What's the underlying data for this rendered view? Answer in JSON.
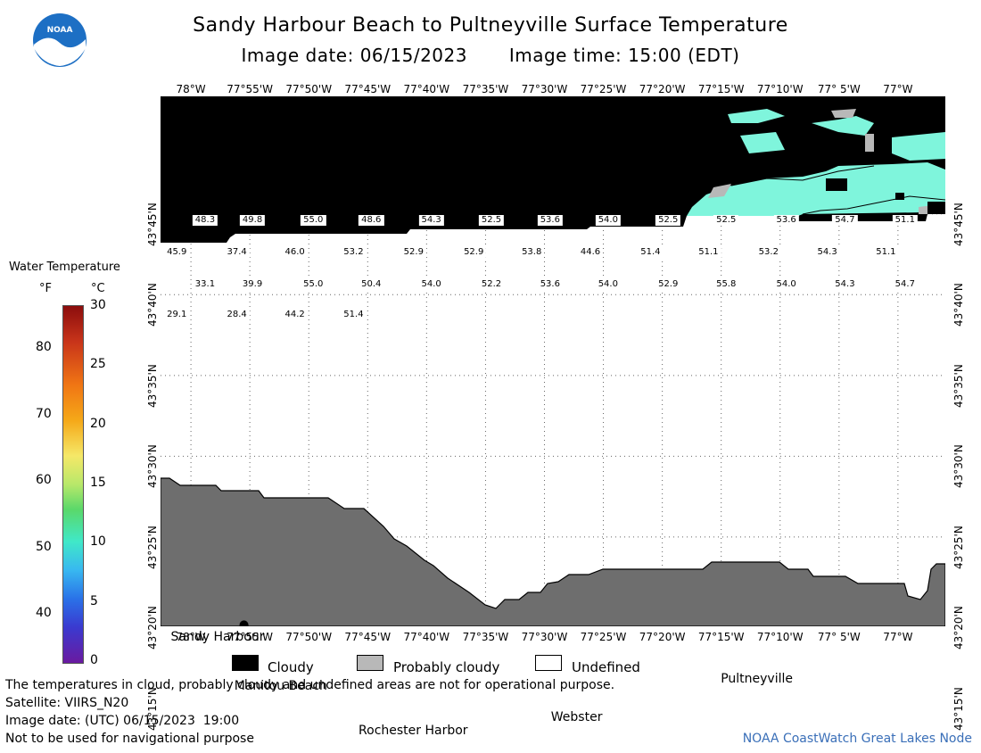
{
  "header": {
    "title": "Sandy Harbour Beach to Pultneyville Surface Temperature",
    "image_date": "Image date: 06/15/2023",
    "image_time": "Image time: 15:00 (EDT)"
  },
  "logo": {
    "text": "NOAA",
    "color": "#1d6fc4"
  },
  "map": {
    "lon_labels_top": [
      "78°W",
      "77°55'W",
      "77°50'W",
      "77°45'W",
      "77°40'W",
      "77°35'W",
      "77°30'W",
      "77°25'W",
      "77°20'W",
      "77°15'W",
      "77°10'W",
      "77° 5'W",
      "77°W"
    ],
    "lon_labels_bottom": [
      "78°W",
      "77°55'W",
      "77°50'W",
      "77°45'W",
      "77°40'W",
      "77°35'W",
      "77°30'W",
      "77°25'W",
      "77°20'W",
      "77°15'W",
      "77°10'W",
      "77° 5'W",
      "77°W"
    ],
    "lat_labels": [
      "43°45'N",
      "43°40'N",
      "43°35'N",
      "43°30'N",
      "43°25'N",
      "43°20'N",
      "43°15'N"
    ],
    "temperatures": [
      {
        "value": "48.3",
        "lon": -77.98,
        "lat": 43.743
      },
      {
        "value": "49.8",
        "lon": -77.913,
        "lat": 43.743
      },
      {
        "value": "55.0",
        "lon": -77.827,
        "lat": 43.743
      },
      {
        "value": "48.6",
        "lon": -77.745,
        "lat": 43.743
      },
      {
        "value": "54.3",
        "lon": -77.66,
        "lat": 43.743
      },
      {
        "value": "52.5",
        "lon": -77.575,
        "lat": 43.743
      },
      {
        "value": "53.6",
        "lon": -77.492,
        "lat": 43.743
      },
      {
        "value": "54.0",
        "lon": -77.41,
        "lat": 43.743
      },
      {
        "value": "52.5",
        "lon": -77.325,
        "lat": 43.743
      },
      {
        "value": "52.5",
        "lon": -77.243,
        "lat": 43.743
      },
      {
        "value": "53.6",
        "lon": -77.158,
        "lat": 43.743
      },
      {
        "value": "54.7",
        "lon": -77.075,
        "lat": 43.743
      },
      {
        "value": "51.1",
        "lon": -76.99,
        "lat": 43.743
      },
      {
        "value": "45.9",
        "lon": -78.02,
        "lat": 43.71
      },
      {
        "value": "37.4",
        "lon": -77.935,
        "lat": 43.71
      },
      {
        "value": "46.0",
        "lon": -77.853,
        "lat": 43.71
      },
      {
        "value": "53.2",
        "lon": -77.77,
        "lat": 43.71
      },
      {
        "value": "52.9",
        "lon": -77.685,
        "lat": 43.71
      },
      {
        "value": "52.9",
        "lon": -77.6,
        "lat": 43.71
      },
      {
        "value": "53.8",
        "lon": -77.518,
        "lat": 43.71
      },
      {
        "value": "44.6",
        "lon": -77.435,
        "lat": 43.71
      },
      {
        "value": "51.4",
        "lon": -77.35,
        "lat": 43.71
      },
      {
        "value": "51.1",
        "lon": -77.268,
        "lat": 43.71
      },
      {
        "value": "53.2",
        "lon": -77.183,
        "lat": 43.71
      },
      {
        "value": "54.3",
        "lon": -77.1,
        "lat": 43.71
      },
      {
        "value": "51.1",
        "lon": -77.017,
        "lat": 43.71
      },
      {
        "value": "33.1",
        "lon": -77.98,
        "lat": 43.677
      },
      {
        "value": "39.9",
        "lon": -77.913,
        "lat": 43.677
      },
      {
        "value": "55.0",
        "lon": -77.827,
        "lat": 43.677
      },
      {
        "value": "50.4",
        "lon": -77.745,
        "lat": 43.677
      },
      {
        "value": "54.0",
        "lon": -77.66,
        "lat": 43.677
      },
      {
        "value": "52.2",
        "lon": -77.575,
        "lat": 43.677
      },
      {
        "value": "53.6",
        "lon": -77.492,
        "lat": 43.677
      },
      {
        "value": "54.0",
        "lon": -77.41,
        "lat": 43.677
      },
      {
        "value": "52.9",
        "lon": -77.325,
        "lat": 43.677
      },
      {
        "value": "55.8",
        "lon": -77.243,
        "lat": 43.677
      },
      {
        "value": "54.0",
        "lon": -77.158,
        "lat": 43.677
      },
      {
        "value": "54.3",
        "lon": -77.075,
        "lat": 43.677
      },
      {
        "value": "54.7",
        "lon": -76.99,
        "lat": 43.677
      },
      {
        "value": "29.1",
        "lon": -78.02,
        "lat": 43.646
      },
      {
        "value": "28.4",
        "lon": -77.935,
        "lat": 43.646
      },
      {
        "value": "44.2",
        "lon": -77.853,
        "lat": 43.646
      },
      {
        "value": "51.4",
        "lon": -77.77,
        "lat": 43.646
      }
    ],
    "places": [
      {
        "name": "Sandy Harbour",
        "lon": -77.925,
        "lat": 43.326
      },
      {
        "name": "Manitou Beach",
        "lon": -77.81,
        "lat": 43.279
      },
      {
        "name": "Rochester Harbor",
        "lon": -77.604,
        "lat": 43.233
      },
      {
        "name": "Webster",
        "lon": -77.458,
        "lat": 43.245
      },
      {
        "name": "Pultneyville",
        "lon": -77.185,
        "lat": 43.283
      }
    ]
  },
  "legend": {
    "title": "Water Temperature",
    "unit_f": "°F",
    "unit_c": "°C",
    "f_ticks": [
      "80",
      "70",
      "60",
      "50",
      "40"
    ],
    "c_ticks": [
      "30",
      "25",
      "20",
      "15",
      "10",
      "5",
      "0"
    ]
  },
  "key": {
    "cloudy": "Cloudy",
    "probably_cloudy": "Probably cloudy",
    "undefined": "Undefined",
    "colors": {
      "cloudy": "#000000",
      "probably_cloudy": "#b8b8b8",
      "undefined": "#ffffff",
      "land": "#6e6e6e",
      "warm_water": "#7ff5dc"
    }
  },
  "footer": {
    "disclaimer": "The temperatures in cloud, probably cloudy and undefined areas are not for operational purpose.",
    "satellite": "Satellite: VIIRS_N20",
    "image_date_utc": "Image date: (UTC) 06/15/2023  19:00",
    "navigation": "Not to be used for navigational purpose",
    "credit": "NOAA CoastWatch Great Lakes Node"
  }
}
